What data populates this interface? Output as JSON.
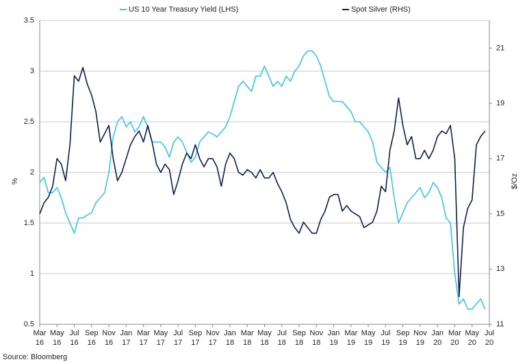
{
  "chart_data": {
    "type": "line",
    "legend": "top",
    "grid": true,
    "ylabel": "%",
    "y2label": "$/Oz",
    "source": "Source: Bloomberg",
    "xlim": [
      0,
      52
    ],
    "xticks": [
      {
        "value": 0,
        "label": [
          "Mar",
          "16"
        ]
      },
      {
        "value": 2,
        "label": [
          "May",
          "16"
        ]
      },
      {
        "value": 4,
        "label": [
          "Jul",
          "16"
        ]
      },
      {
        "value": 6,
        "label": [
          "Sep",
          "16"
        ]
      },
      {
        "value": 8,
        "label": [
          "Nov",
          "16"
        ]
      },
      {
        "value": 10,
        "label": [
          "Jan",
          "17"
        ]
      },
      {
        "value": 12,
        "label": [
          "Mar",
          "17"
        ]
      },
      {
        "value": 14,
        "label": [
          "May",
          "17"
        ]
      },
      {
        "value": 16,
        "label": [
          "Jul",
          "17"
        ]
      },
      {
        "value": 18,
        "label": [
          "Sep",
          "17"
        ]
      },
      {
        "value": 20,
        "label": [
          "Nov",
          "17"
        ]
      },
      {
        "value": 22,
        "label": [
          "Jan",
          "18"
        ]
      },
      {
        "value": 24,
        "label": [
          "Mar",
          "18"
        ]
      },
      {
        "value": 26,
        "label": [
          "May",
          "18"
        ]
      },
      {
        "value": 28,
        "label": [
          "Jul",
          "18"
        ]
      },
      {
        "value": 30,
        "label": [
          "Sep",
          "18"
        ]
      },
      {
        "value": 32,
        "label": [
          "Nov",
          "18"
        ]
      },
      {
        "value": 34,
        "label": [
          "Jan",
          "19"
        ]
      },
      {
        "value": 36,
        "label": [
          "Mar",
          "19"
        ]
      },
      {
        "value": 38,
        "label": [
          "May",
          "19"
        ]
      },
      {
        "value": 40,
        "label": [
          "Jul",
          "19"
        ]
      },
      {
        "value": 42,
        "label": [
          "Sep",
          "19"
        ]
      },
      {
        "value": 44,
        "label": [
          "Nov",
          "19"
        ]
      },
      {
        "value": 46,
        "label": [
          "Jan",
          "20"
        ]
      },
      {
        "value": 48,
        "label": [
          "Mar",
          "20"
        ]
      },
      {
        "value": 50,
        "label": [
          "May",
          "20"
        ]
      },
      {
        "value": 52,
        "label": [
          "Jul",
          "20"
        ]
      }
    ],
    "ylim": [
      0.5,
      3.5
    ],
    "yticks": [
      0.5,
      1,
      1.5,
      2,
      2.5,
      3,
      3.5
    ],
    "y2lim": [
      11,
      22
    ],
    "y2ticks": [
      11,
      13,
      15,
      17,
      19,
      21
    ],
    "x": [
      0,
      0.5,
      1,
      1.5,
      2,
      2.5,
      3,
      3.5,
      4,
      4.5,
      5,
      5.5,
      6,
      6.5,
      7,
      7.5,
      8,
      8.5,
      9,
      9.5,
      10,
      10.5,
      11,
      11.5,
      12,
      12.5,
      13,
      13.5,
      14,
      14.5,
      15,
      15.5,
      16,
      16.5,
      17,
      17.5,
      18,
      18.5,
      19,
      19.5,
      20,
      20.5,
      21,
      21.5,
      22,
      22.5,
      23,
      23.5,
      24,
      24.5,
      25,
      25.5,
      26,
      26.5,
      27,
      27.5,
      28,
      28.5,
      29,
      29.5,
      30,
      30.5,
      31,
      31.5,
      32,
      32.5,
      33,
      33.5,
      34,
      34.5,
      35,
      35.5,
      36,
      36.5,
      37,
      37.5,
      38,
      38.5,
      39,
      39.5,
      40,
      40.5,
      41,
      41.5,
      42,
      42.5,
      43,
      43.5,
      44,
      44.5,
      45,
      45.5,
      46,
      46.5,
      47,
      47.5,
      48,
      48.5,
      49,
      49.5,
      50,
      50.5,
      51,
      51.5
    ],
    "series": [
      {
        "name": "US 10 Year Treasury Yield (LHS)",
        "color": "#3ec3ee",
        "values": [
          1.9,
          1.95,
          1.8,
          1.8,
          1.85,
          1.75,
          1.6,
          1.5,
          1.4,
          1.55,
          1.55,
          1.58,
          1.6,
          1.7,
          1.75,
          1.8,
          2.0,
          2.35,
          2.5,
          2.55,
          2.45,
          2.5,
          2.4,
          2.45,
          2.55,
          2.45,
          2.3,
          2.3,
          2.3,
          2.25,
          2.15,
          2.3,
          2.35,
          2.3,
          2.2,
          2.1,
          2.15,
          2.3,
          2.35,
          2.4,
          2.38,
          2.35,
          2.4,
          2.45,
          2.55,
          2.7,
          2.85,
          2.9,
          2.85,
          2.8,
          2.95,
          2.95,
          3.05,
          2.95,
          2.85,
          2.9,
          2.85,
          2.95,
          2.9,
          3.0,
          3.05,
          3.15,
          3.2,
          3.2,
          3.15,
          3.05,
          2.9,
          2.75,
          2.7,
          2.7,
          2.7,
          2.65,
          2.6,
          2.5,
          2.5,
          2.45,
          2.4,
          2.3,
          2.1,
          2.05,
          2.0,
          2.05,
          1.75,
          1.5,
          1.6,
          1.7,
          1.75,
          1.8,
          1.85,
          1.75,
          1.8,
          1.9,
          1.85,
          1.75,
          1.55,
          1.5,
          1.0,
          0.7,
          0.75,
          0.65,
          0.65,
          0.7,
          0.75,
          0.65
        ]
      },
      {
        "name": "Spot Silver (RHS)",
        "color": "#0c1c4c",
        "axis": "y2",
        "values": [
          15.0,
          15.4,
          15.6,
          16.0,
          17.0,
          16.8,
          16.2,
          17.5,
          20.0,
          19.8,
          20.3,
          19.7,
          19.3,
          18.7,
          17.6,
          17.9,
          18.2,
          17.0,
          16.2,
          16.5,
          17.0,
          17.5,
          17.8,
          18.0,
          17.6,
          18.2,
          17.6,
          16.8,
          16.5,
          16.8,
          16.6,
          15.7,
          16.2,
          16.8,
          17.2,
          17.0,
          17.5,
          17.0,
          16.7,
          17.0,
          17.0,
          16.7,
          16.0,
          16.8,
          17.2,
          17.0,
          16.5,
          16.4,
          16.6,
          16.5,
          16.3,
          16.6,
          16.3,
          16.3,
          16.5,
          16.1,
          15.8,
          15.4,
          14.8,
          14.5,
          14.3,
          14.7,
          14.5,
          14.3,
          14.3,
          14.8,
          15.1,
          15.6,
          15.7,
          15.7,
          15.1,
          15.3,
          15.1,
          15.0,
          14.9,
          14.5,
          14.6,
          14.7,
          15.1,
          16.0,
          15.8,
          17.3,
          18.0,
          19.2,
          18.2,
          17.5,
          17.8,
          17.0,
          17.0,
          17.3,
          17.0,
          17.3,
          17.8,
          18.0,
          17.9,
          18.2,
          17.0,
          12.0,
          14.5,
          15.2,
          15.5,
          17.5,
          17.8,
          18.0
        ]
      }
    ]
  }
}
